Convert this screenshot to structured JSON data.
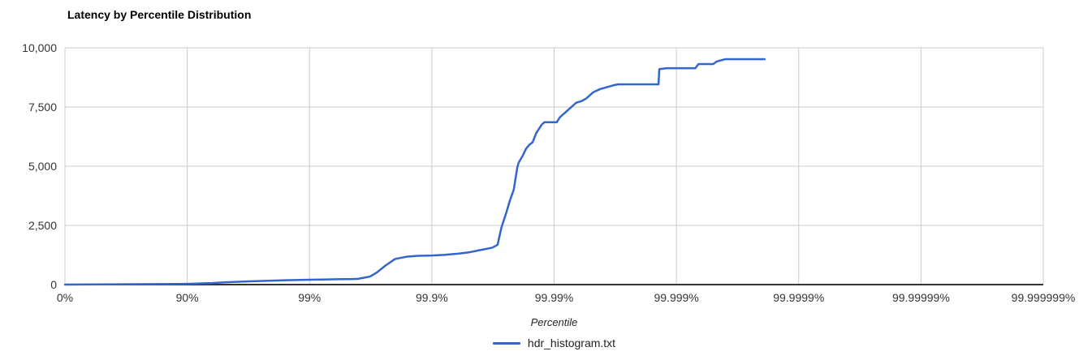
{
  "chart": {
    "title": "Latency by Percentile Distribution",
    "xlabel": "Percentile",
    "legend_label": "hdr_histogram.txt"
  },
  "colors": {
    "series": "#3366cc",
    "grid": "#cccccc",
    "axis": "#333333",
    "tick_text": "#333333",
    "background": "#ffffff"
  },
  "chart_data": {
    "type": "line",
    "title": "Latency by Percentile Distribution",
    "xlabel": "Percentile",
    "ylabel": "",
    "x_scale": "log-percentile-decades",
    "x_decades": 8,
    "x_tick_labels": [
      "0%",
      "90%",
      "99%",
      "99.9%",
      "99.99%",
      "99.999%",
      "99.9999%",
      "99.99999%",
      "99.999999%"
    ],
    "y_ticks": [
      0,
      2500,
      5000,
      7500,
      10000
    ],
    "y_tick_labels": [
      "0",
      "2,500",
      "5,000",
      "7,500",
      "10,000"
    ],
    "ylim": [
      0,
      10000
    ],
    "grid": true,
    "legend_position": "bottom",
    "series": [
      {
        "name": "hdr_histogram.txt",
        "color": "#3366cc",
        "points_percentile_value": [
          [
            0,
            2
          ],
          [
            25,
            4
          ],
          [
            50,
            8
          ],
          [
            75,
            15
          ],
          [
            87.5,
            25
          ],
          [
            90,
            32
          ],
          [
            93.75,
            65
          ],
          [
            95,
            95
          ],
          [
            96.875,
            135
          ],
          [
            98,
            165
          ],
          [
            98.44,
            185
          ],
          [
            99,
            205
          ],
          [
            99.22,
            215
          ],
          [
            99.41,
            225
          ],
          [
            99.56,
            235
          ],
          [
            99.6,
            245
          ],
          [
            99.68,
            340
          ],
          [
            99.72,
            520
          ],
          [
            99.76,
            800
          ],
          [
            99.8,
            1080
          ],
          [
            99.84,
            1180
          ],
          [
            99.87,
            1215
          ],
          [
            99.9,
            1230
          ],
          [
            99.92,
            1255
          ],
          [
            99.94,
            1310
          ],
          [
            99.95,
            1360
          ],
          [
            99.96,
            1460
          ],
          [
            99.968,
            1560
          ],
          [
            99.971,
            1680
          ],
          [
            99.973,
            2400
          ],
          [
            99.9755,
            3070
          ],
          [
            99.977,
            3550
          ],
          [
            99.9786,
            4000
          ],
          [
            99.98,
            4950
          ],
          [
            99.9805,
            5150
          ],
          [
            99.982,
            5460
          ],
          [
            99.983,
            5730
          ],
          [
            99.984,
            5900
          ],
          [
            99.985,
            6010
          ],
          [
            99.986,
            6400
          ],
          [
            99.9874,
            6760
          ],
          [
            99.988,
            6860
          ],
          [
            99.9905,
            6860
          ],
          [
            99.991,
            7060
          ],
          [
            99.9924,
            7400
          ],
          [
            99.9934,
            7680
          ],
          [
            99.994,
            7745
          ],
          [
            99.9945,
            7850
          ],
          [
            99.9952,
            8120
          ],
          [
            99.9958,
            8260
          ],
          [
            99.9968,
            8430
          ],
          [
            99.997,
            8460
          ],
          [
            99.9986,
            8460
          ],
          [
            99.99862,
            9100
          ],
          [
            99.9988,
            9140
          ],
          [
            99.9993,
            9140
          ],
          [
            99.99934,
            9315
          ],
          [
            99.9995,
            9315
          ],
          [
            99.99953,
            9420
          ],
          [
            99.9996,
            9520
          ],
          [
            99.99981,
            9520
          ]
        ]
      }
    ]
  }
}
